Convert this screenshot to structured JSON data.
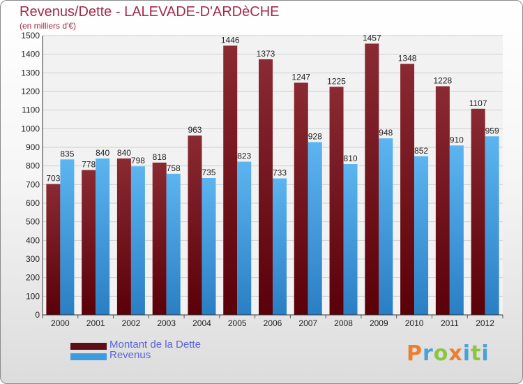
{
  "header": {
    "title": "Revenus/Dette - LALEVADE-D'ARDèCHE",
    "subtitle": "(en milliers d'€)"
  },
  "chart_data": {
    "type": "bar",
    "categories": [
      "2000",
      "2001",
      "2002",
      "2003",
      "2004",
      "2005",
      "2006",
      "2007",
      "2008",
      "2009",
      "2010",
      "2011",
      "2012"
    ],
    "series": [
      {
        "name": "Montant de la Dette",
        "color": "#7a1a22",
        "values": [
          703,
          778,
          840,
          818,
          963,
          1446,
          1373,
          1247,
          1225,
          1457,
          1348,
          1228,
          1107
        ]
      },
      {
        "name": "Revenus",
        "color": "#3e9be0",
        "values": [
          835,
          840,
          798,
          758,
          735,
          823,
          733,
          928,
          810,
          948,
          852,
          910,
          959
        ]
      }
    ],
    "ylim": [
      0,
      1500
    ],
    "yticks": [
      0,
      100,
      200,
      300,
      400,
      500,
      600,
      700,
      800,
      900,
      1000,
      1100,
      1200,
      1300,
      1400,
      1500
    ],
    "grid": true,
    "legend": "bottom-left"
  },
  "legend": {
    "items": [
      {
        "label": "Montant de la Dette",
        "color": "#5c0f16"
      },
      {
        "label": "Revenus",
        "color": "#3e9be0"
      }
    ]
  },
  "logo": {
    "letters": [
      "P",
      "r",
      "o",
      "x",
      "i",
      "t",
      "i"
    ]
  }
}
